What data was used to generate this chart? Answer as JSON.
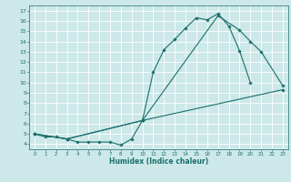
{
  "title": "",
  "xlabel": "Humidex (Indice chaleur)",
  "bg_color": "#cde8e8",
  "grid_color": "#ffffff",
  "line_color": "#1a6e6e",
  "xlim": [
    -0.5,
    23.5
  ],
  "ylim": [
    3.5,
    17.5
  ],
  "xticks": [
    0,
    1,
    2,
    3,
    4,
    5,
    6,
    7,
    8,
    9,
    10,
    11,
    12,
    13,
    14,
    15,
    16,
    17,
    18,
    19,
    20,
    21,
    22,
    23
  ],
  "yticks": [
    4,
    5,
    6,
    7,
    8,
    9,
    10,
    11,
    12,
    13,
    14,
    15,
    16,
    17
  ],
  "line1_x": [
    0,
    1,
    2,
    3,
    4,
    5,
    6,
    7,
    8,
    9,
    10,
    11,
    12,
    13,
    14,
    15,
    16,
    17,
    18,
    19,
    20
  ],
  "line1_y": [
    5.0,
    4.7,
    4.7,
    4.5,
    4.2,
    4.2,
    4.2,
    4.2,
    3.9,
    4.5,
    6.3,
    11.0,
    13.2,
    14.2,
    15.3,
    16.3,
    16.1,
    16.7,
    15.5,
    13.1,
    10.0
  ],
  "line2_x": [
    0,
    3,
    10,
    17,
    19,
    20,
    21,
    23
  ],
  "line2_y": [
    5.0,
    4.5,
    6.3,
    16.5,
    15.1,
    14.0,
    13.0,
    9.7
  ],
  "line3_x": [
    0,
    3,
    10,
    23
  ],
  "line3_y": [
    5.0,
    4.5,
    6.3,
    9.3
  ]
}
